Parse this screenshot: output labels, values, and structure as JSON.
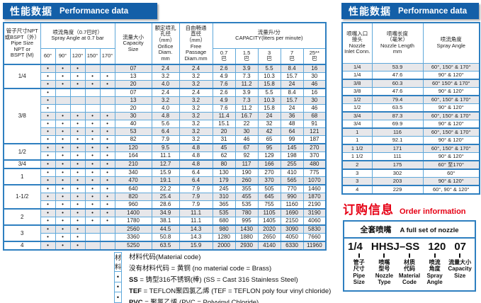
{
  "colors": {
    "title_bar_blue": "#135fa8",
    "table_border_blue": "#5fa8da",
    "thick_border_blue": "#2e7fc0",
    "shaded_row": "#e7e7ea",
    "order_red": "#e60014"
  },
  "dot_glyph": "•",
  "left_panel": {
    "title_cn": "性能数据",
    "title_en": "Performance data",
    "table": {
      "headers": {
        "pipe_size": "管子尺寸NPT\n或BSPT（外）\nPipe Size\nNPT or\nBSPT (M)",
        "spray_angle": "喷流角度（0.7巴时）\nSpray Angle at 0.7 bar",
        "angles": [
          "60°",
          "90°",
          "120°",
          "150°",
          "170°"
        ],
        "capacity_size": "流量大小\nCapacity\nSize",
        "orifice": "额定喷孔\n孔径\n（mm）\nOrifice\nDiam.\nmm",
        "free_passage": "自由畅通\n直径\n（mm）\nFree\nPassage\nDiam.mm",
        "capacity": "流量升/分\nCAPACITY(liters per minute)",
        "pressures": [
          "0.7\n巴",
          "1.5\n巴",
          "3\n巴",
          "7\n巴",
          "25**\n巴"
        ]
      },
      "groups": [
        {
          "pipe": "1/4",
          "rows": [
            {
              "size": "07",
              "dots": [
                1,
                1,
                1,
                0,
                0
              ],
              "orifice": "2.4",
              "free": "2.4",
              "caps": [
                "2.6",
                "3.9",
                "5.5",
                "8.4",
                "16"
              ]
            },
            {
              "size": "13",
              "dots": [
                1,
                1,
                1,
                1,
                1
              ],
              "orifice": "3.2",
              "free": "3.2",
              "caps": [
                "4.9",
                "7.3",
                "10.3",
                "15.7",
                "30"
              ]
            },
            {
              "size": "20",
              "dots": [
                1,
                1,
                1,
                1,
                1
              ],
              "orifice": "4.0",
              "free": "3.2",
              "caps": [
                "7.6",
                "11.2",
                "15.8",
                "24",
                "46"
              ]
            }
          ]
        },
        {
          "pipe": "3/8",
          "rows": [
            {
              "size": "07",
              "dots": [
                1,
                0,
                0,
                0,
                0
              ],
              "orifice": "2.4",
              "free": "2.4",
              "caps": [
                "2.6",
                "3.9",
                "5.5",
                "8.4",
                "16"
              ]
            },
            {
              "size": "13",
              "dots": [
                1,
                0,
                0,
                0,
                0
              ],
              "orifice": "3.2",
              "free": "3.2",
              "caps": [
                "4.9",
                "7.3",
                "10.3",
                "15.7",
                "30"
              ]
            },
            {
              "size": "20",
              "dots": [
                1,
                0,
                0,
                0,
                0
              ],
              "orifice": "4.0",
              "free": "3.2",
              "caps": [
                "7.6",
                "11.2",
                "15.8",
                "24",
                "46"
              ]
            },
            {
              "size": "30",
              "dots": [
                1,
                1,
                1,
                1,
                1
              ],
              "orifice": "4.8",
              "free": "3.2",
              "caps": [
                "11.4",
                "16.7",
                "24",
                "36",
                "68"
              ]
            },
            {
              "size": "40",
              "dots": [
                1,
                1,
                1,
                1,
                1
              ],
              "orifice": "5.6",
              "free": "3.2",
              "caps": [
                "15.1",
                "22",
                "32",
                "48",
                "91"
              ]
            },
            {
              "size": "53",
              "dots": [
                1,
                1,
                1,
                1,
                1
              ],
              "orifice": "6.4",
              "free": "3.2",
              "caps": [
                "20",
                "30",
                "42",
                "64",
                "121"
              ]
            },
            {
              "size": "82",
              "dots": [
                1,
                1,
                1,
                1,
                1
              ],
              "orifice": "7.9",
              "free": "3.2",
              "caps": [
                "31",
                "46",
                "65",
                "99",
                "187"
              ]
            }
          ]
        },
        {
          "pipe": "1/2",
          "rows": [
            {
              "size": "120",
              "dots": [
                1,
                1,
                1,
                1,
                1
              ],
              "orifice": "9.5",
              "free": "4.8",
              "caps": [
                "45",
                "67",
                "95",
                "145",
                "270"
              ]
            },
            {
              "size": "164",
              "dots": [
                1,
                1,
                1,
                1,
                1
              ],
              "orifice": "11.1",
              "free": "4.8",
              "caps": [
                "62",
                "92",
                "129",
                "198",
                "370"
              ]
            }
          ]
        },
        {
          "pipe": "3/4",
          "rows": [
            {
              "size": "210",
              "dots": [
                1,
                1,
                1,
                1,
                1
              ],
              "orifice": "12.7",
              "free": "4.8",
              "caps": [
                "80",
                "117",
                "166",
                "255",
                "480"
              ]
            }
          ]
        },
        {
          "pipe": "1",
          "rows": [
            {
              "size": "340",
              "dots": [
                1,
                1,
                1,
                1,
                1
              ],
              "orifice": "15.9",
              "free": "6.4",
              "caps": [
                "130",
                "190",
                "270",
                "410",
                "775"
              ]
            },
            {
              "size": "470",
              "dots": [
                1,
                1,
                1,
                1,
                1
              ],
              "orifice": "19.1",
              "free": "6.4",
              "caps": [
                "179",
                "260",
                "370",
                "565",
                "1070"
              ]
            }
          ]
        },
        {
          "pipe": "1-1/2",
          "rows": [
            {
              "size": "640",
              "dots": [
                1,
                1,
                1,
                1,
                1
              ],
              "orifice": "22.2",
              "free": "7.9",
              "caps": [
                "245",
                "355",
                "505",
                "770",
                "1460"
              ]
            },
            {
              "size": "820",
              "dots": [
                1,
                1,
                1,
                1,
                1
              ],
              "orifice": "25.4",
              "free": "7.9",
              "caps": [
                "310",
                "455",
                "645",
                "990",
                "1870"
              ]
            },
            {
              "size": "960",
              "dots": [
                1,
                1,
                1,
                1,
                1
              ],
              "orifice": "28.6",
              "free": "7.9",
              "caps": [
                "365",
                "535",
                "755",
                "1160",
                "2190"
              ]
            }
          ]
        },
        {
          "pipe": "2",
          "rows": [
            {
              "size": "1400",
              "dots": [
                1,
                1,
                1,
                1,
                1
              ],
              "orifice": "34.9",
              "free": "11.1",
              "caps": [
                "535",
                "780",
                "1105",
                "1690",
                "3190"
              ]
            },
            {
              "size": "1780",
              "dots": [
                1,
                1,
                1,
                1,
                1
              ],
              "orifice": "38.1",
              "free": "11.1",
              "caps": [
                "680",
                "995",
                "1405",
                "2150",
                "4060"
              ]
            }
          ]
        },
        {
          "pipe": "3",
          "rows": [
            {
              "size": "2560",
              "dots": [
                1,
                1,
                1,
                0,
                0
              ],
              "orifice": "44.5",
              "free": "14.3",
              "caps": [
                "980",
                "1430",
                "2020",
                "3090",
                "5830"
              ]
            },
            {
              "size": "3360",
              "dots": [
                1,
                1,
                1,
                0,
                0
              ],
              "orifice": "50.8",
              "free": "14.3",
              "caps": [
                "1280",
                "1880",
                "2650",
                "4050",
                "7660"
              ]
            }
          ]
        },
        {
          "pipe": "4",
          "rows": [
            {
              "size": "5250",
              "dots": [
                1,
                1,
                1,
                0,
                0
              ],
              "orifice": "63.5",
              "free": "15.9",
              "caps": [
                "2000",
                "2930",
                "4140",
                "6330",
                "11960"
              ]
            }
          ]
        }
      ]
    },
    "material": {
      "header_cell": "材料",
      "header_text": "材料代码(Material code)",
      "rows": [
        {
          "bullet": "•",
          "bold": "",
          "text": "没有材料代码 = 黄铜  (no material code = Brass)"
        },
        {
          "bullet": "•",
          "bold": "SS",
          "text": " = 铸型316不锈钢(棒) (SS = Cast 316 Stainless Steel)"
        },
        {
          "bullet": "•",
          "bold": "TEF",
          "text": " = TEFLON聚四氯乙烯 (TEF = TEFLON poly four vinyl chloride)"
        },
        {
          "bullet": "•",
          "bold": "PVC",
          "text": " = 聚氯乙烯 (PVC = Polyvinyl Chloride)"
        }
      ]
    }
  },
  "right_panel": {
    "title_cn": "性能数据",
    "title_en": "Performance data",
    "table": {
      "headers": {
        "inlet": "喷嘴入口\n接头\nNozzle\nInlet Conn.",
        "length": "喷嘴长度\n（毫米）\nNozzle Length\nmm",
        "angle": "喷流角度\nSpray Angle"
      },
      "rows": [
        [
          "1/4",
          "53.9",
          "60°, 150° & 170°"
        ],
        [
          "1/4",
          "47.6",
          "90° & 120°"
        ],
        [
          "3/8",
          "60.3",
          "60° 150° & 170°"
        ],
        [
          "3/8",
          "47.6",
          "90° & 120°"
        ],
        [
          "1/2",
          "79.4",
          "60°, 150° & 170°"
        ],
        [
          "1/2",
          "63.5",
          "90° & 120°"
        ],
        [
          "3/4",
          "87.3",
          "60°, 150° & 170°"
        ],
        [
          "3/4",
          "69.9",
          "90° & 120°"
        ],
        [
          "1",
          "116",
          "60°, 150° & 170°"
        ],
        [
          "1",
          "92.1",
          "90° & 120°"
        ],
        [
          "1 1/2",
          "171",
          "60°, 150° & 170°"
        ],
        [
          "1 1/2",
          "111",
          "90° & 120°"
        ],
        [
          "2",
          "175",
          "60° 至170°"
        ],
        [
          "3",
          "302",
          "60°"
        ],
        [
          "3",
          "203",
          "90° & 120°"
        ],
        [
          "4",
          "229",
          "60°, 90° & 120°"
        ]
      ]
    },
    "order": {
      "title_cn": "订购信息",
      "title_en": "Order information",
      "box_title_cn": "全套喷嘴",
      "box_title_en": "A full set of nozzle",
      "codes": [
        "1/4",
        "HHSJ–SS",
        "120",
        "07"
      ],
      "fields": [
        {
          "cn": "管子\n尺寸",
          "en": "Pipe\nSize"
        },
        {
          "cn": "喷嘴\n型号",
          "en": "Nozzle\nType"
        },
        {
          "cn": "材质\n代码",
          "en": "Material\nCode"
        },
        {
          "cn": "喷流\n角度",
          "en": "Spray\nAngle"
        },
        {
          "cn": "流量大小",
          "en": "Capacity\nSize"
        }
      ]
    }
  }
}
